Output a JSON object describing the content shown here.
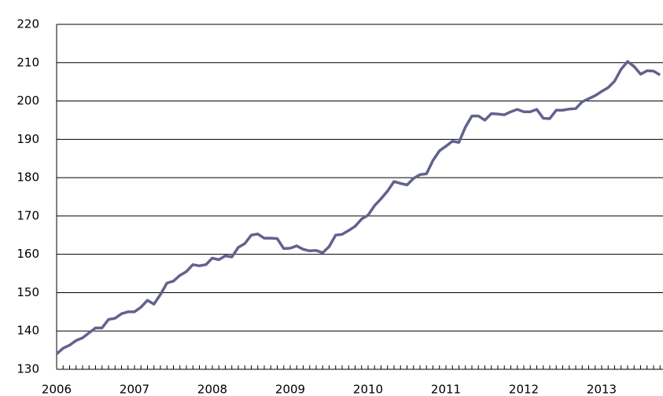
{
  "chart_data": {
    "type": "line",
    "categories": [
      "2006",
      null,
      null,
      null,
      null,
      null,
      null,
      null,
      null,
      null,
      null,
      null,
      "2007",
      null,
      null,
      null,
      null,
      null,
      null,
      null,
      null,
      null,
      null,
      null,
      "2008",
      null,
      null,
      null,
      null,
      null,
      null,
      null,
      null,
      null,
      null,
      null,
      "2009",
      null,
      null,
      null,
      null,
      null,
      null,
      null,
      null,
      null,
      null,
      null,
      "2010",
      null,
      null,
      null,
      null,
      null,
      null,
      null,
      null,
      null,
      null,
      null,
      "2011",
      null,
      null,
      null,
      null,
      null,
      null,
      null,
      null,
      null,
      null,
      null,
      "2012",
      null,
      null,
      null,
      null,
      null,
      null,
      null,
      null,
      null,
      null,
      null,
      "2013",
      null,
      null,
      null,
      null,
      null,
      null,
      null,
      null,
      null
    ],
    "values": [
      134,
      135.5,
      136.3,
      137.5,
      138.2,
      139.5,
      140.8,
      140.8,
      143,
      143.3,
      144.5,
      145,
      145,
      146.2,
      148,
      147,
      149.5,
      152.5,
      153,
      154.5,
      155.5,
      157.3,
      157,
      157.3,
      159,
      158.6,
      159.6,
      159.3,
      161.8,
      162.8,
      165,
      165.3,
      164.2,
      164.2,
      164.1,
      161.5,
      161.6,
      162.2,
      161.3,
      160.9,
      161,
      160.4,
      162,
      165,
      165.2,
      166.2,
      167.3,
      169.2,
      170.2,
      172.7,
      174.5,
      176.5,
      179,
      178.5,
      178.1,
      179.8,
      180.8,
      181,
      184.5,
      187,
      188.2,
      189.5,
      189.2,
      193.2,
      196.1,
      196.1,
      195,
      196.7,
      196.6,
      196.4,
      197.2,
      197.8,
      197.2,
      197.2,
      197.8,
      195.5,
      195.4,
      197.6,
      197.6,
      197.9,
      198,
      199.8,
      200.6,
      201.4,
      202.5,
      203.5,
      205.2,
      208.3,
      210.3,
      209,
      207,
      207.9,
      207.8,
      206.8
    ],
    "color": "#62628f",
    "ylim": [
      130,
      220
    ],
    "yticks": [
      130,
      140,
      150,
      160,
      170,
      180,
      190,
      200,
      210,
      220
    ],
    "grid": true
  }
}
